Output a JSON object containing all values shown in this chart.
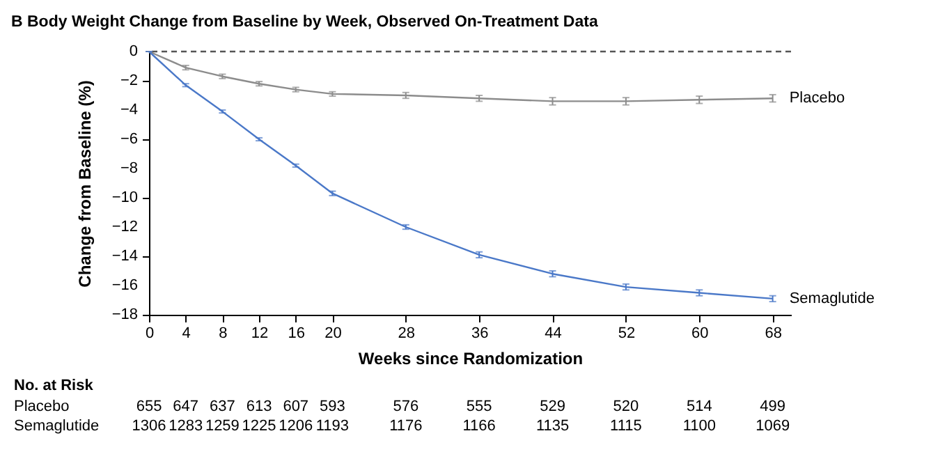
{
  "chart_data": {
    "type": "line",
    "title": "B  Body Weight Change from Baseline by Week, Observed On-Treatment Data",
    "xlabel": "Weeks since Randomization",
    "ylabel": "Change from Baseline (%)",
    "x": [
      0,
      4,
      8,
      12,
      16,
      20,
      28,
      36,
      44,
      52,
      60,
      68
    ],
    "series": [
      {
        "name": "Placebo",
        "color": "#8c8c8c",
        "values": [
          0,
          -1.1,
          -1.7,
          -2.2,
          -2.6,
          -2.9,
          -3.0,
          -3.2,
          -3.4,
          -3.4,
          -3.3,
          -3.2
        ],
        "errors": [
          0,
          0.15,
          0.15,
          0.15,
          0.15,
          0.15,
          0.2,
          0.2,
          0.25,
          0.25,
          0.25,
          0.25
        ]
      },
      {
        "name": "Semaglutide",
        "color": "#4a78c8",
        "values": [
          0,
          -2.3,
          -4.1,
          -6.0,
          -7.8,
          -9.7,
          -12.0,
          -13.9,
          -15.2,
          -16.1,
          -16.5,
          -16.9
        ],
        "errors": [
          0,
          0.1,
          0.1,
          0.1,
          0.1,
          0.15,
          0.15,
          0.2,
          0.2,
          0.2,
          0.2,
          0.2
        ]
      }
    ],
    "xlim": [
      0,
      70
    ],
    "xticks": [
      0,
      4,
      8,
      12,
      16,
      20,
      28,
      36,
      44,
      52,
      60,
      68
    ],
    "ylim": [
      -18,
      0
    ],
    "yticks": [
      -18,
      -16,
      -14,
      -12,
      -10,
      -8,
      -6,
      -4,
      -2,
      0
    ],
    "ref_lines": [
      {
        "axis": "y",
        "value": 0,
        "line_style": "dashed",
        "color": "#555555"
      }
    ],
    "grid": false,
    "annotations": [
      "No. at Risk",
      "Placebo",
      "655",
      "647",
      "637",
      "613",
      "607",
      "593",
      "576",
      "555",
      "529",
      "520",
      "514",
      "499",
      "Semaglutide",
      "1306",
      "1283",
      "1259",
      "1225",
      "1206",
      "1193",
      "1176",
      "1166",
      "1135",
      "1115",
      "1100",
      "1069"
    ]
  }
}
